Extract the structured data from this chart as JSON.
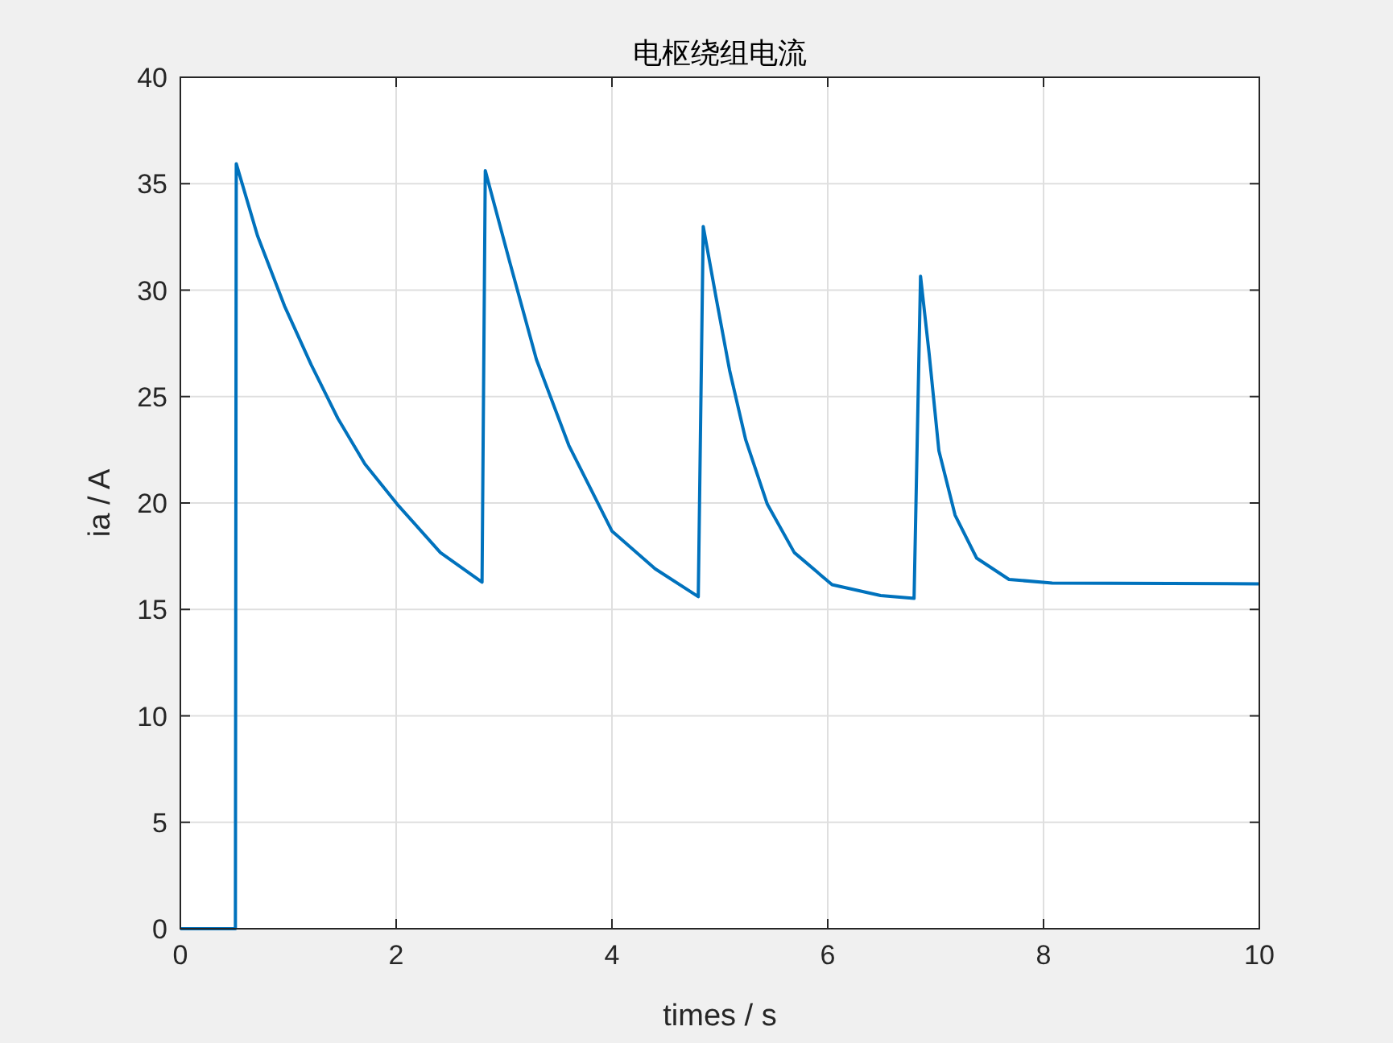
{
  "chart_data": {
    "type": "line",
    "title": "电枢绕组电流",
    "xlabel": "times / s",
    "ylabel": "ia / A",
    "xlim": [
      0,
      10
    ],
    "ylim": [
      0,
      40
    ],
    "xticks": [
      0,
      2,
      4,
      6,
      8,
      10
    ],
    "yticks": [
      0,
      5,
      10,
      15,
      20,
      25,
      30,
      35,
      40
    ],
    "grid": true,
    "marker": "none",
    "line_style": "solid",
    "series": [
      {
        "color": "#0072bd",
        "x": [
          0,
          0.51,
          0.518,
          0.716,
          0.965,
          1.213,
          1.46,
          1.71,
          2.01,
          2.41,
          2.796,
          2.826,
          3.055,
          3.3,
          3.6,
          4.0,
          4.4,
          4.8,
          4.846,
          4.97,
          5.09,
          5.24,
          5.44,
          5.69,
          6.04,
          6.49,
          6.8,
          6.86,
          6.94,
          7.03,
          7.18,
          7.38,
          7.68,
          8.08,
          10
        ],
        "values": [
          0,
          0,
          35.94,
          32.54,
          29.26,
          26.49,
          23.97,
          21.83,
          19.94,
          17.67,
          16.28,
          35.61,
          31.28,
          26.74,
          22.71,
          18.68,
          16.91,
          15.6,
          32.99,
          29.51,
          26.24,
          22.96,
          19.94,
          17.67,
          16.16,
          15.65,
          15.52,
          30.65,
          27.0,
          22.46,
          19.43,
          17.41,
          16.41,
          16.24,
          16.2
        ]
      }
    ]
  }
}
